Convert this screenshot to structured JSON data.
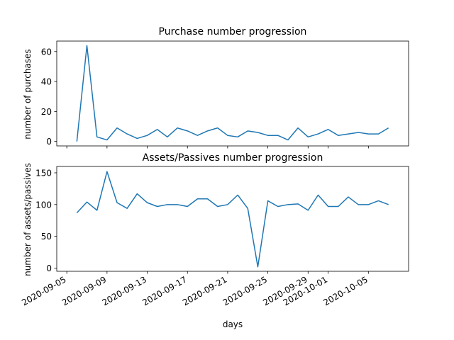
{
  "chart_data": [
    {
      "type": "line",
      "title": "Purchase number progression",
      "xlabel": "",
      "ylabel": "number of purchases",
      "x_tick_labels_shown": false,
      "xlim": [
        "2020-09-04",
        "2020-10-09"
      ],
      "ylim": [
        -3,
        67
      ],
      "yticks": [
        0,
        20,
        40,
        60
      ],
      "grid": false,
      "color": "#1f77b4",
      "x": [
        "2020-09-06",
        "2020-09-07",
        "2020-09-08",
        "2020-09-09",
        "2020-09-10",
        "2020-09-11",
        "2020-09-12",
        "2020-09-13",
        "2020-09-14",
        "2020-09-15",
        "2020-09-16",
        "2020-09-17",
        "2020-09-18",
        "2020-09-19",
        "2020-09-20",
        "2020-09-21",
        "2020-09-22",
        "2020-09-23",
        "2020-09-24",
        "2020-09-25",
        "2020-09-26",
        "2020-09-27",
        "2020-09-28",
        "2020-09-29",
        "2020-09-30",
        "2020-10-01",
        "2020-10-02",
        "2020-10-03",
        "2020-10-04",
        "2020-10-05",
        "2020-10-06",
        "2020-10-07"
      ],
      "values": [
        0,
        64,
        3,
        1,
        9,
        5,
        2,
        4,
        8,
        3,
        9,
        7,
        4,
        7,
        9,
        4,
        3,
        7,
        6,
        4,
        4,
        1,
        9,
        3,
        5,
        8,
        4,
        5,
        6,
        5,
        5,
        9
      ]
    },
    {
      "type": "line",
      "title": "Assets/Passives number progression",
      "xlabel": "days",
      "ylabel": "number of assets/passives",
      "xlim": [
        "2020-09-04",
        "2020-10-09"
      ],
      "ylim": [
        -5,
        160
      ],
      "yticks": [
        0,
        50,
        100,
        150
      ],
      "xtick_labels": [
        "2020-09-05",
        "2020-09-09",
        "2020-09-13",
        "2020-09-17",
        "2020-09-21",
        "2020-09-25",
        "2020-09-29",
        "2020-10-01",
        "2020-10-05"
      ],
      "grid": false,
      "color": "#1f77b4",
      "x": [
        "2020-09-06",
        "2020-09-07",
        "2020-09-08",
        "2020-09-09",
        "2020-09-10",
        "2020-09-11",
        "2020-09-12",
        "2020-09-13",
        "2020-09-14",
        "2020-09-15",
        "2020-09-16",
        "2020-09-17",
        "2020-09-18",
        "2020-09-19",
        "2020-09-20",
        "2020-09-21",
        "2020-09-22",
        "2020-09-23",
        "2020-09-24",
        "2020-09-25",
        "2020-09-26",
        "2020-09-27",
        "2020-09-28",
        "2020-09-29",
        "2020-09-30",
        "2020-10-01",
        "2020-10-02",
        "2020-10-03",
        "2020-10-04",
        "2020-10-05",
        "2020-10-06",
        "2020-10-07"
      ],
      "values": [
        87,
        104,
        91,
        152,
        103,
        94,
        117,
        103,
        97,
        100,
        100,
        97,
        109,
        109,
        97,
        100,
        115,
        94,
        2,
        106,
        97,
        100,
        101,
        91,
        115,
        97,
        97,
        112,
        100,
        100,
        106,
        100
      ]
    }
  ]
}
